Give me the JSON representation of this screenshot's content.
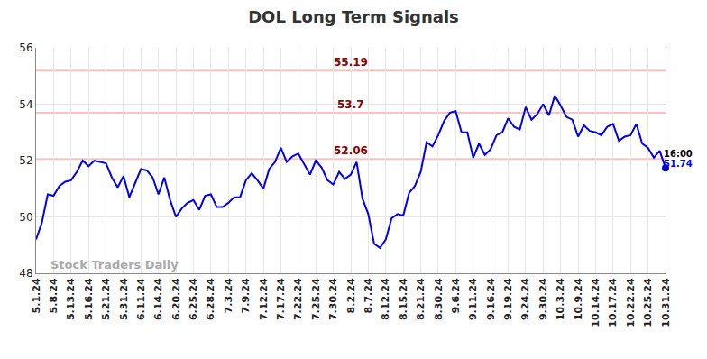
{
  "chart_data": {
    "type": "line",
    "title": "DOL Long Term Signals",
    "categories": [
      "5.1.24",
      null,
      null,
      "5.8.24",
      null,
      null,
      "5.13.24",
      null,
      null,
      "5.16.24",
      null,
      null,
      "5.21.24",
      null,
      null,
      "5.31.24",
      null,
      null,
      "6.11.24",
      null,
      null,
      "6.14.24",
      null,
      null,
      "6.20.24",
      null,
      null,
      "6.25.24",
      null,
      null,
      "6.28.24",
      null,
      null,
      "7.3.24",
      null,
      null,
      "7.9.24",
      null,
      null,
      "7.12.24",
      null,
      null,
      "7.17.24",
      null,
      null,
      "7.22.24",
      null,
      null,
      "7.25.24",
      null,
      null,
      "7.30.24",
      null,
      null,
      "8.2.24",
      null,
      null,
      "8.7.24",
      null,
      null,
      "8.12.24",
      null,
      null,
      "8.15.24",
      null,
      null,
      "8.21.24",
      null,
      null,
      "8.30.24",
      null,
      null,
      "9.6.24",
      null,
      null,
      "9.11.24",
      null,
      null,
      "9.16.24",
      null,
      null,
      "9.19.24",
      null,
      null,
      "9.24.24",
      null,
      null,
      "9.30.24",
      null,
      null,
      "10.3.24",
      null,
      null,
      "10.9.24",
      null,
      null,
      "10.14.24",
      null,
      null,
      "10.17.24",
      null,
      null,
      "10.22.24",
      null,
      null,
      "10.25.24",
      null,
      null,
      "10.31.24"
    ],
    "values": [
      49.2,
      49.8,
      50.8,
      50.75,
      51.1,
      51.25,
      51.3,
      51.6,
      52.0,
      51.8,
      52.0,
      51.95,
      51.9,
      51.4,
      51.05,
      51.45,
      50.7,
      51.2,
      51.7,
      51.65,
      51.4,
      50.8,
      51.4,
      50.6,
      50.0,
      50.3,
      50.5,
      50.6,
      50.25,
      50.75,
      50.8,
      50.35,
      50.35,
      50.5,
      50.7,
      50.7,
      51.3,
      51.55,
      51.3,
      51.0,
      51.7,
      51.95,
      52.45,
      51.95,
      52.15,
      52.25,
      51.85,
      51.5,
      52.0,
      51.75,
      51.3,
      51.15,
      51.6,
      51.35,
      51.5,
      51.95,
      50.65,
      50.1,
      49.05,
      48.9,
      49.2,
      49.95,
      50.1,
      50.05,
      50.85,
      51.1,
      51.6,
      52.65,
      52.5,
      52.9,
      53.4,
      53.7,
      53.75,
      53.0,
      53.0,
      52.1,
      52.6,
      52.2,
      52.4,
      52.9,
      53.0,
      53.5,
      53.2,
      53.1,
      53.9,
      53.45,
      53.65,
      54.0,
      53.6,
      54.3,
      53.95,
      53.55,
      53.45,
      52.85,
      53.25,
      53.05,
      53.0,
      52.9,
      53.2,
      53.3,
      52.7,
      52.85,
      52.9,
      53.3,
      52.6,
      52.45,
      52.1,
      52.35,
      51.74
    ],
    "color": "#0000ee",
    "ylim": [
      48,
      56
    ],
    "yticks": [
      48,
      50,
      52,
      54,
      56
    ],
    "grid": true,
    "levels": [
      55.19,
      53.7,
      52.06
    ],
    "last_time": "16:00",
    "watermark": "Stock Traders Daily"
  }
}
